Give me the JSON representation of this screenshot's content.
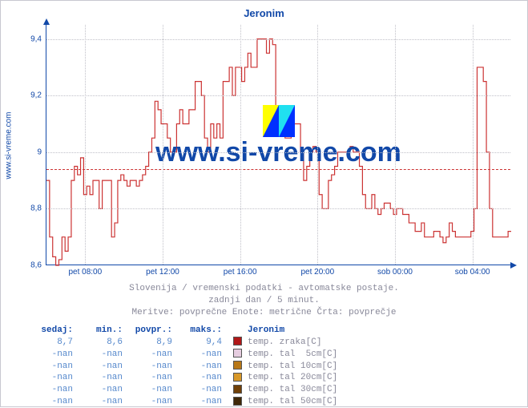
{
  "title": "Jeronim",
  "ylabel": "www.si-vreme.com",
  "watermark": "www.si-vreme.com",
  "chart": {
    "type": "line",
    "ylim": [
      8.6,
      9.45
    ],
    "yticks": [
      8.6,
      8.8,
      9.0,
      9.2,
      9.4
    ],
    "xticks": [
      "pet 08:00",
      "pet 12:00",
      "pet 16:00",
      "pet 20:00",
      "sob 00:00",
      "sob 04:00"
    ],
    "grid_color": "#c0c0c8",
    "axis_color": "#1148a8",
    "background_color": "#ffffff",
    "line_color": "#cc3333",
    "mean_line_color": "#cc3333",
    "mean_value": 8.94,
    "label_fontsize": 10,
    "title_fontsize": 13,
    "title_color": "#1148a8",
    "series": [
      8.9,
      8.7,
      8.63,
      8.6,
      8.62,
      8.7,
      8.65,
      8.7,
      8.9,
      8.95,
      8.92,
      8.98,
      8.85,
      8.88,
      8.85,
      8.9,
      8.9,
      8.8,
      8.9,
      8.9,
      8.9,
      8.7,
      8.75,
      8.9,
      8.92,
      8.9,
      8.88,
      8.9,
      8.9,
      8.88,
      8.9,
      8.92,
      8.95,
      9.0,
      9.05,
      9.18,
      9.15,
      9.1,
      9.1,
      9.05,
      9.0,
      9.0,
      9.1,
      9.15,
      9.1,
      9.1,
      9.15,
      9.15,
      9.25,
      9.25,
      9.2,
      9.05,
      9.0,
      9.1,
      9.05,
      9.1,
      9.05,
      9.25,
      9.25,
      9.3,
      9.2,
      9.3,
      9.3,
      9.25,
      9.3,
      9.35,
      9.3,
      9.3,
      9.4,
      9.4,
      9.4,
      9.35,
      9.4,
      9.38,
      9.1,
      9.12,
      9.1,
      9.05,
      9.05,
      9.15,
      9.1,
      9.1,
      9.0,
      8.9,
      8.95,
      9.0,
      9.02,
      9.0,
      8.85,
      8.8,
      8.8,
      8.9,
      8.92,
      8.95,
      9.0,
      9.0,
      9.0,
      9.0,
      9.02,
      9.0,
      9.0,
      8.95,
      8.85,
      8.8,
      8.8,
      8.85,
      8.8,
      8.78,
      8.8,
      8.82,
      8.82,
      8.8,
      8.78,
      8.8,
      8.8,
      8.78,
      8.78,
      8.75,
      8.75,
      8.72,
      8.72,
      8.75,
      8.7,
      8.7,
      8.7,
      8.72,
      8.72,
      8.7,
      8.68,
      8.7,
      8.75,
      8.72,
      8.7,
      8.7,
      8.7,
      8.7,
      8.7,
      8.72,
      8.8,
      9.3,
      9.3,
      9.25,
      9.0,
      8.8,
      8.7,
      8.7,
      8.7,
      8.7,
      8.7,
      8.72
    ]
  },
  "subtitle": {
    "line1": "Slovenija / vremenski podatki - avtomatske postaje.",
    "line2": "zadnji dan / 5 minut.",
    "line3": "Meritve: povprečne  Enote: metrične  Črta: povprečje"
  },
  "stats": {
    "headers": [
      "sedaj:",
      "min.:",
      "povpr.:",
      "maks.:"
    ],
    "series_header": "Jeronim",
    "rows": [
      {
        "vals": [
          "8,7",
          "8,6",
          "8,9",
          "9,4"
        ],
        "swatch": "#b01818",
        "label": "temp. zraka[C]"
      },
      {
        "vals": [
          "-nan",
          "-nan",
          "-nan",
          "-nan"
        ],
        "swatch": "#e6cde0",
        "label": "temp. tal  5cm[C]"
      },
      {
        "vals": [
          "-nan",
          "-nan",
          "-nan",
          "-nan"
        ],
        "swatch": "#b87818",
        "label": "temp. tal 10cm[C]"
      },
      {
        "vals": [
          "-nan",
          "-nan",
          "-nan",
          "-nan"
        ],
        "swatch": "#d89828",
        "label": "temp. tal 20cm[C]"
      },
      {
        "vals": [
          "-nan",
          "-nan",
          "-nan",
          "-nan"
        ],
        "swatch": "#704008",
        "label": "temp. tal 30cm[C]"
      },
      {
        "vals": [
          "-nan",
          "-nan",
          "-nan",
          "-nan"
        ],
        "swatch": "#402808",
        "label": "temp. tal 50cm[C]"
      }
    ]
  },
  "logo_colors": {
    "blue": "#0030ff",
    "yellow": "#ffff00",
    "cyan": "#20e0f0"
  }
}
